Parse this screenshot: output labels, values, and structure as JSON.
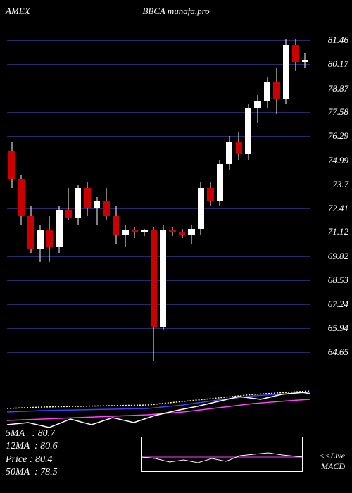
{
  "header": {
    "left": "AMEX",
    "center": "BBCA munafa.pro"
  },
  "main_chart": {
    "type": "candlestick",
    "background_color": "#000000",
    "grid_color": "#2a2a6a",
    "ylim": [
      63.5,
      82.5
    ],
    "ytick_labels": [
      "81.46",
      "80.17",
      "78.87",
      "77.58",
      "76.29",
      "74.99",
      "73.7",
      "72.41",
      "71.12",
      "69.82",
      "68.53",
      "67.24",
      "65.94",
      "64.65"
    ],
    "ytick_values": [
      81.46,
      80.17,
      78.87,
      77.58,
      76.29,
      74.99,
      73.7,
      72.41,
      71.12,
      69.82,
      68.53,
      67.24,
      65.94,
      64.65
    ],
    "label_color": "#ffffff",
    "label_fontsize": 13,
    "candle_up_color": "#ffffff",
    "candle_down_color": "#cc0000",
    "wick_color": "#ffffff",
    "candles": [
      {
        "x": 0,
        "open": 75.5,
        "high": 76.0,
        "low": 73.5,
        "close": 74.0
      },
      {
        "x": 1,
        "open": 74.0,
        "high": 74.2,
        "low": 71.5,
        "close": 72.0
      },
      {
        "x": 2,
        "open": 72.0,
        "high": 72.5,
        "low": 70.0,
        "close": 70.2
      },
      {
        "x": 3,
        "open": 70.2,
        "high": 71.5,
        "low": 69.5,
        "close": 71.2
      },
      {
        "x": 4,
        "open": 71.2,
        "high": 72.0,
        "low": 69.5,
        "close": 70.3
      },
      {
        "x": 5,
        "open": 70.3,
        "high": 72.5,
        "low": 70.0,
        "close": 72.3
      },
      {
        "x": 6,
        "open": 72.3,
        "high": 73.5,
        "low": 71.8,
        "close": 71.9
      },
      {
        "x": 7,
        "open": 71.9,
        "high": 73.7,
        "low": 71.5,
        "close": 73.5
      },
      {
        "x": 8,
        "open": 73.5,
        "high": 73.8,
        "low": 72.0,
        "close": 72.4
      },
      {
        "x": 9,
        "open": 72.4,
        "high": 73.0,
        "low": 71.5,
        "close": 72.8
      },
      {
        "x": 10,
        "open": 72.8,
        "high": 73.5,
        "low": 71.8,
        "close": 72.0
      },
      {
        "x": 11,
        "open": 72.0,
        "high": 72.5,
        "low": 70.5,
        "close": 71.0
      },
      {
        "x": 12,
        "open": 71.0,
        "high": 71.5,
        "low": 70.3,
        "close": 71.2
      },
      {
        "x": 13,
        "open": 71.2,
        "high": 71.4,
        "low": 70.8,
        "close": 71.1
      },
      {
        "x": 14,
        "open": 71.1,
        "high": 71.3,
        "low": 70.9,
        "close": 71.2
      },
      {
        "x": 15,
        "open": 71.2,
        "high": 71.4,
        "low": 64.2,
        "close": 66.0
      },
      {
        "x": 16,
        "open": 66.0,
        "high": 71.5,
        "low": 65.8,
        "close": 71.2
      },
      {
        "x": 17,
        "open": 71.2,
        "high": 71.4,
        "low": 70.9,
        "close": 71.1
      },
      {
        "x": 18,
        "open": 71.1,
        "high": 71.3,
        "low": 70.8,
        "close": 71.0
      },
      {
        "x": 19,
        "open": 71.0,
        "high": 71.5,
        "low": 70.5,
        "close": 71.3
      },
      {
        "x": 20,
        "open": 71.3,
        "high": 73.8,
        "low": 71.0,
        "close": 73.5
      },
      {
        "x": 21,
        "open": 73.5,
        "high": 73.8,
        "low": 72.5,
        "close": 72.8
      },
      {
        "x": 22,
        "open": 72.8,
        "high": 75.0,
        "low": 72.5,
        "close": 74.8
      },
      {
        "x": 23,
        "open": 74.8,
        "high": 76.3,
        "low": 74.5,
        "close": 76.0
      },
      {
        "x": 24,
        "open": 76.0,
        "high": 76.5,
        "low": 75.0,
        "close": 75.3
      },
      {
        "x": 25,
        "open": 75.3,
        "high": 78.0,
        "low": 75.0,
        "close": 77.8
      },
      {
        "x": 26,
        "open": 77.8,
        "high": 78.5,
        "low": 77.0,
        "close": 78.2
      },
      {
        "x": 27,
        "open": 78.2,
        "high": 79.5,
        "low": 77.8,
        "close": 79.2
      },
      {
        "x": 28,
        "open": 79.2,
        "high": 80.0,
        "low": 77.5,
        "close": 78.3
      },
      {
        "x": 29,
        "open": 78.3,
        "high": 81.5,
        "low": 78.0,
        "close": 81.2
      },
      {
        "x": 30,
        "open": 81.2,
        "high": 81.5,
        "low": 79.8,
        "close": 80.3
      },
      {
        "x": 31,
        "open": 80.3,
        "high": 80.8,
        "low": 80.0,
        "close": 80.4
      }
    ]
  },
  "indicator_panel": {
    "lines": [
      {
        "name": "dotted",
        "color": "#ffff88",
        "dash": "2,2",
        "points": [
          [
            0,
            45
          ],
          [
            50,
            43
          ],
          [
            100,
            42
          ],
          [
            150,
            41
          ],
          [
            200,
            40
          ],
          [
            250,
            35
          ],
          [
            300,
            30
          ],
          [
            350,
            25
          ],
          [
            400,
            22
          ],
          [
            430,
            20
          ]
        ]
      },
      {
        "name": "blue",
        "color": "#4040ff",
        "dash": "none",
        "points": [
          [
            0,
            50
          ],
          [
            50,
            48
          ],
          [
            100,
            47
          ],
          [
            150,
            46
          ],
          [
            200,
            45
          ],
          [
            250,
            40
          ],
          [
            300,
            33
          ],
          [
            350,
            27
          ],
          [
            400,
            24
          ],
          [
            430,
            22
          ]
        ]
      },
      {
        "name": "magenta",
        "color": "#ff40ff",
        "dash": "none",
        "points": [
          [
            0,
            62
          ],
          [
            50,
            60
          ],
          [
            100,
            58
          ],
          [
            150,
            56
          ],
          [
            200,
            54
          ],
          [
            250,
            50
          ],
          [
            300,
            44
          ],
          [
            350,
            38
          ],
          [
            400,
            34
          ],
          [
            430,
            32
          ]
        ]
      },
      {
        "name": "white",
        "color": "#ffffff",
        "dash": "none",
        "points": [
          [
            0,
            68
          ],
          [
            30,
            65
          ],
          [
            60,
            72
          ],
          [
            90,
            60
          ],
          [
            120,
            68
          ],
          [
            150,
            58
          ],
          [
            180,
            65
          ],
          [
            210,
            55
          ],
          [
            240,
            48
          ],
          [
            270,
            42
          ],
          [
            300,
            35
          ],
          [
            330,
            28
          ],
          [
            360,
            32
          ],
          [
            390,
            25
          ],
          [
            420,
            22
          ],
          [
            430,
            24
          ]
        ]
      }
    ]
  },
  "info": {
    "rows": [
      {
        "label": "5MA",
        "value": "80.7"
      },
      {
        "label": "12MA",
        "value": "80.6"
      },
      {
        "label": "Price",
        "value": "80.4"
      },
      {
        "label": "50MA",
        "value": "78.5"
      }
    ]
  },
  "macd_inset": {
    "label_line1": "<<Live",
    "label_line2": "MACD",
    "zero_line_color": "#ff40ff",
    "signal_color": "#ffffff",
    "points": [
      [
        0,
        28
      ],
      [
        20,
        30
      ],
      [
        40,
        35
      ],
      [
        60,
        32
      ],
      [
        80,
        36
      ],
      [
        100,
        30
      ],
      [
        120,
        34
      ],
      [
        140,
        26
      ],
      [
        160,
        24
      ],
      [
        180,
        22
      ],
      [
        200,
        25
      ],
      [
        220,
        27
      ],
      [
        230,
        28
      ]
    ]
  }
}
